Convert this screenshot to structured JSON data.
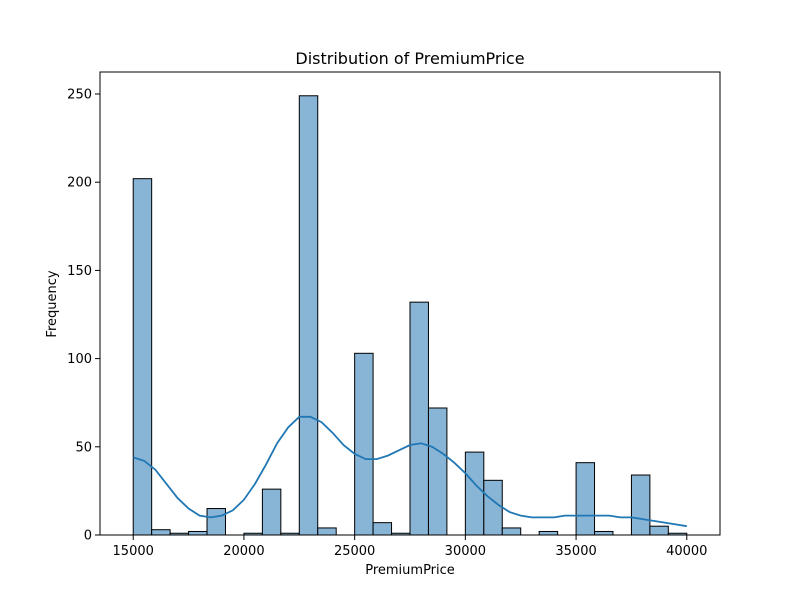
{
  "chart_data": {
    "type": "bar",
    "title": "Distribution of PremiumPrice",
    "xlabel": "PremiumPrice",
    "ylabel": "Frequency",
    "xlim": [
      13500,
      41500
    ],
    "ylim": [
      0,
      250
    ],
    "x_ticks": [
      15000,
      20000,
      25000,
      30000,
      35000,
      40000
    ],
    "y_ticks": [
      0,
      50,
      100,
      150,
      200,
      250
    ],
    "bin_start": 15000,
    "bin_end": 40000,
    "bin_count": 30,
    "values": [
      202,
      3,
      1,
      2,
      15,
      0,
      1,
      26,
      1,
      249,
      4,
      0,
      103,
      7,
      1,
      132,
      72,
      0,
      47,
      31,
      4,
      0,
      2,
      0,
      41,
      2,
      0,
      34,
      5,
      1
    ],
    "kde": {
      "x": [
        15000,
        15500,
        16000,
        16500,
        17000,
        17500,
        18000,
        18500,
        19000,
        19500,
        20000,
        20500,
        21000,
        21500,
        22000,
        22500,
        23000,
        23500,
        24000,
        24500,
        25000,
        25500,
        26000,
        26500,
        27000,
        27500,
        28000,
        28500,
        29000,
        29500,
        30000,
        30500,
        31000,
        31500,
        32000,
        32500,
        33000,
        33500,
        34000,
        34500,
        35000,
        35500,
        36000,
        36500,
        37000,
        37500,
        38000,
        38500,
        39000,
        39500,
        40000
      ],
      "y": [
        44,
        42,
        37,
        29,
        21,
        15,
        11,
        10,
        11,
        14,
        20,
        29,
        40,
        52,
        61,
        67,
        67,
        64,
        58,
        51,
        46,
        43,
        43,
        45,
        48,
        51,
        52,
        50,
        46,
        41,
        35,
        28,
        22,
        17,
        13,
        11,
        10,
        10,
        10,
        11,
        11,
        11,
        11,
        11,
        10,
        10,
        9,
        8,
        7,
        6,
        5
      ]
    },
    "bar_color": "#88b4d6",
    "bar_edge_color": "#000000",
    "kde_color": "#1f77b4",
    "grid": false,
    "legend": "none"
  }
}
